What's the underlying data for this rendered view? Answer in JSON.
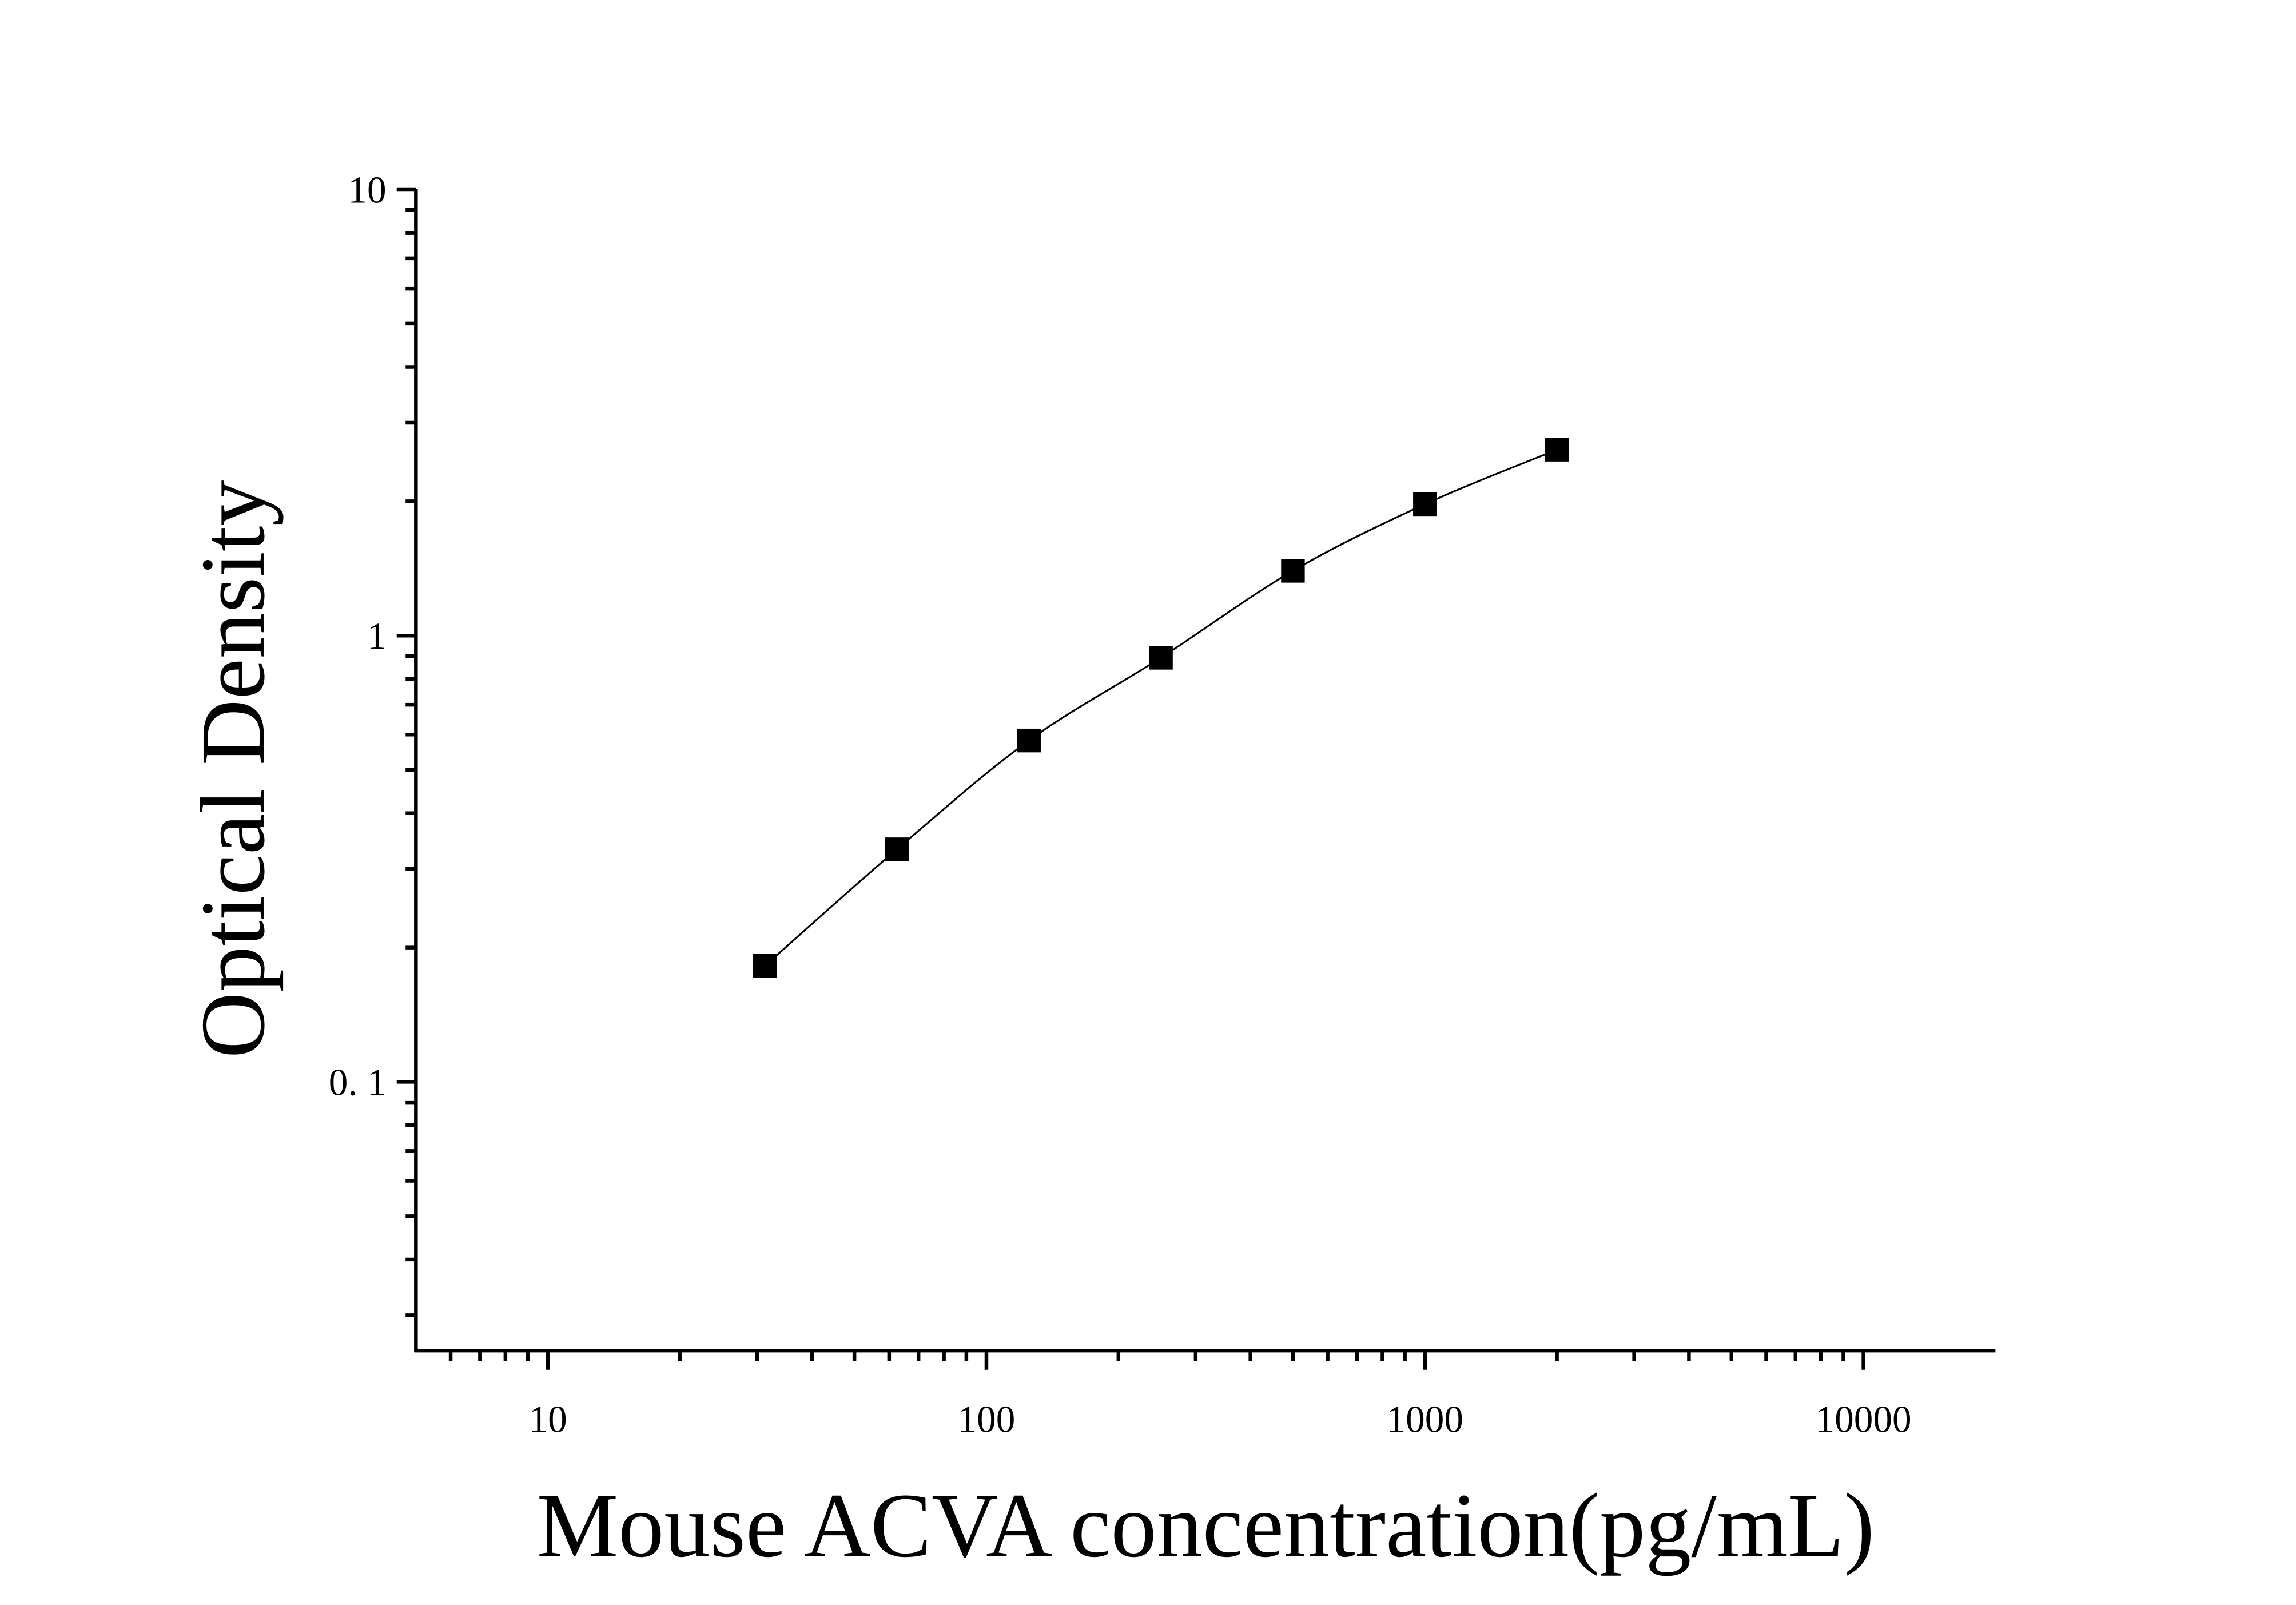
{
  "chart_data": {
    "type": "scatter",
    "x_label": "Mouse ACVA concentration(pg/mL)",
    "y_label": "Optical Density",
    "x": [
      31.25,
      62.5,
      125,
      250,
      500,
      1000,
      2000
    ],
    "series": [
      {
        "color": "#000000",
        "values": [
          0.182,
          0.332,
          0.582,
          0.892,
          1.397,
          1.97,
          2.61
        ]
      }
    ],
    "xlim": [
      5,
      20000
    ],
    "xticks": [
      10,
      100,
      1000,
      10000
    ],
    "ylim": [
      0.025,
      10
    ],
    "yticks": [
      {
        "value": 0.1,
        "label": "0. 1"
      },
      1,
      10
    ],
    "log_x": true,
    "log_y": true,
    "fit_line": true
  }
}
